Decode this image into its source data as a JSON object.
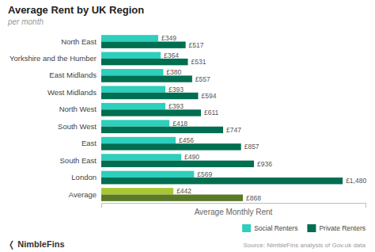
{
  "chart_data": {
    "type": "bar",
    "orientation": "horizontal",
    "title": "Average Rent by UK Region",
    "subtitle": "per month",
    "xlabel": "Average Monthly Rent",
    "annotations": [
      "Source: NimbleFins analysis of Gov.uk data",
      "❬ NimbleFins"
    ],
    "categories": [
      "Average",
      "London",
      "South East",
      "East",
      "South West",
      "North West",
      "West Midlands",
      "East Midlands",
      "Yorkshire and the Humber",
      "North East"
    ],
    "series": [
      {
        "name": "Social Renters",
        "color": "#2ecfbc",
        "colors": [
          "#a8c832",
          "#2ecfbc",
          "#2ecfbc",
          "#2ecfbc",
          "#2ecfbc",
          "#2ecfbc",
          "#2ecfbc",
          "#2ecfbc",
          "#2ecfbc",
          "#2ecfbc"
        ],
        "values": [
          442,
          569,
          490,
          456,
          418,
          393,
          393,
          380,
          364,
          349
        ],
        "value_labels": [
          "£442",
          "£569",
          "£490",
          "£456",
          "£418",
          "£393",
          "£393",
          "£380",
          "£364",
          "£349"
        ]
      },
      {
        "name": "Private Renters",
        "color": "#006e50",
        "colors": [
          "#5a7a28",
          "#006e50",
          "#006e50",
          "#006e50",
          "#006e50",
          "#006e50",
          "#006e50",
          "#006e50",
          "#006e50",
          "#006e50"
        ],
        "values": [
          868,
          1480,
          936,
          857,
          747,
          611,
          594,
          557,
          531,
          517
        ],
        "value_labels": [
          "£868",
          "£1,480",
          "£936",
          "£857",
          "£747",
          "£611",
          "£594",
          "£557",
          "£531",
          "£517"
        ]
      }
    ],
    "xlim": [
      0,
      1620
    ],
    "data_labels": true,
    "tick_labels": "y",
    "legend": "bottom"
  }
}
